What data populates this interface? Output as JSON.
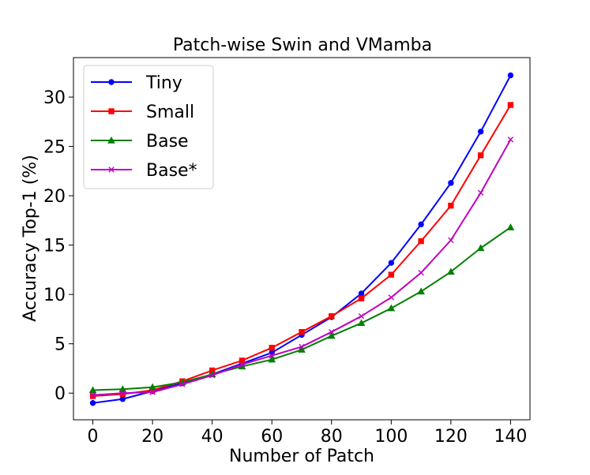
{
  "chart_data": {
    "type": "line",
    "title": "Patch-wise Swin and VMamba",
    "xlabel": "Number of Patch",
    "ylabel": "Accuracy Top-1 (%)",
    "xlim": [
      -6.5,
      146.5
    ],
    "ylim": [
      -2.7,
      34.0
    ],
    "xticks": [
      0,
      20,
      40,
      60,
      80,
      100,
      120,
      140
    ],
    "yticks": [
      0,
      5,
      10,
      15,
      20,
      25,
      30
    ],
    "x": [
      0,
      10,
      20,
      30,
      40,
      50,
      60,
      70,
      80,
      90,
      100,
      110,
      120,
      130,
      140
    ],
    "series": [
      {
        "name": "Tiny",
        "color": "#0000ff",
        "marker": "circle",
        "values": [
          -1.0,
          -0.6,
          0.2,
          1.0,
          1.9,
          3.0,
          4.1,
          5.9,
          7.7,
          10.1,
          13.2,
          17.1,
          21.3,
          26.5,
          32.2
        ]
      },
      {
        "name": "Small",
        "color": "#ff0000",
        "marker": "square",
        "values": [
          -0.3,
          -0.1,
          0.3,
          1.2,
          2.3,
          3.3,
          4.6,
          6.2,
          7.8,
          9.6,
          12.0,
          15.4,
          19.0,
          24.1,
          29.2
        ]
      },
      {
        "name": "Base",
        "color": "#008000",
        "marker": "triangle",
        "values": [
          0.3,
          0.4,
          0.6,
          1.1,
          1.9,
          2.7,
          3.4,
          4.4,
          5.8,
          7.1,
          8.6,
          10.3,
          12.3,
          14.7,
          16.8
        ]
      },
      {
        "name": "Base*",
        "color": "#bf00bf",
        "marker": "x",
        "values": [
          -0.2,
          0.0,
          0.1,
          0.9,
          1.8,
          2.9,
          3.8,
          4.7,
          6.2,
          7.8,
          9.7,
          12.2,
          15.5,
          20.3,
          25.7
        ]
      }
    ],
    "legend_position": "top-left",
    "grid": false
  }
}
